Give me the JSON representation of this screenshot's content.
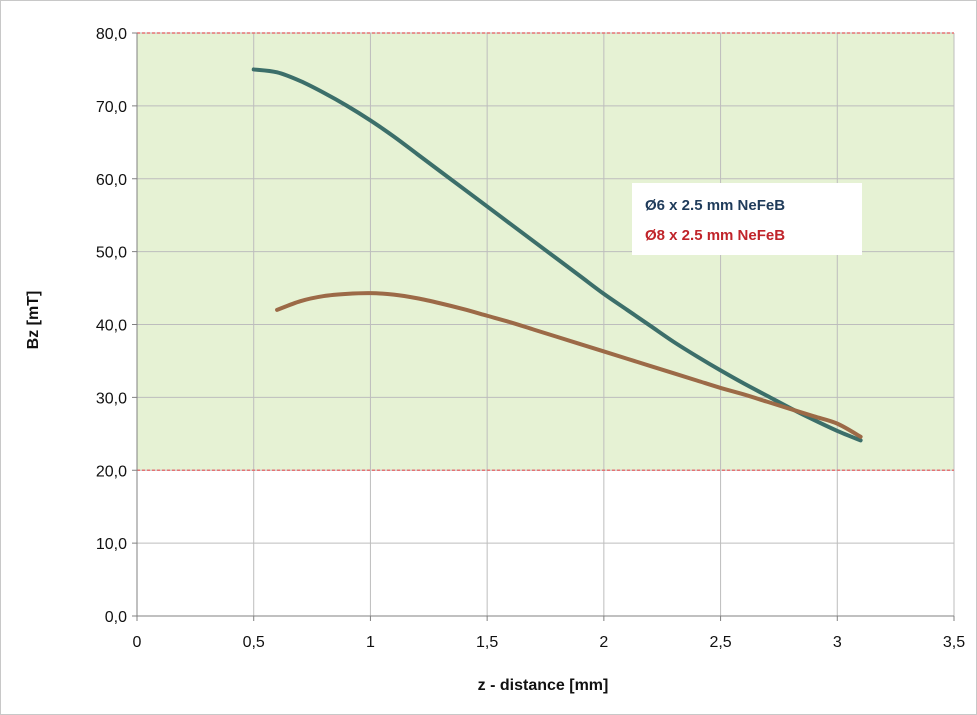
{
  "chart_data": {
    "type": "line",
    "title": "",
    "xlabel": "z - distance [mm]",
    "ylabel": "Bz [mT]",
    "xlim": [
      0,
      3.5
    ],
    "ylim": [
      0,
      80
    ],
    "x_ticks": [
      "0",
      "0,5",
      "1",
      "1,5",
      "2",
      "2,5",
      "3",
      "3,5"
    ],
    "x_tick_values": [
      0,
      0.5,
      1,
      1.5,
      2,
      2.5,
      3,
      3.5
    ],
    "y_ticks": [
      "0,0",
      "10,0",
      "20,0",
      "30,0",
      "40,0",
      "50,0",
      "60,0",
      "70,0",
      "80,0"
    ],
    "y_tick_values": [
      0,
      10,
      20,
      30,
      40,
      50,
      60,
      70,
      80
    ],
    "grid": true,
    "legend_position": "right",
    "shaded_band": {
      "y_from": 20,
      "y_to": 80,
      "fill": "#e6f2d4",
      "limit_line_color": "#e57373"
    },
    "series": [
      {
        "name": "Ø6 x 2.5 mm NeFeB",
        "color": "#3c6f6a",
        "legend_color": "#1f3b5a",
        "x": [
          0.5,
          0.6,
          0.7,
          0.8,
          0.9,
          1.0,
          1.1,
          1.2,
          1.3,
          1.4,
          1.5,
          1.6,
          1.7,
          1.8,
          1.9,
          2.0,
          2.1,
          2.2,
          2.3,
          2.4,
          2.5,
          2.6,
          2.7,
          2.8,
          2.9,
          3.0,
          3.1
        ],
        "y": [
          75.0,
          74.6,
          73.4,
          71.8,
          70.0,
          68.0,
          65.8,
          63.4,
          61.0,
          58.6,
          56.2,
          53.8,
          51.4,
          49.0,
          46.6,
          44.2,
          42.0,
          39.8,
          37.6,
          35.6,
          33.7,
          31.9,
          30.2,
          28.5,
          26.9,
          25.4,
          24.1
        ]
      },
      {
        "name": "Ø8 x 2.5 mm NeFeB",
        "color": "#9c6a47",
        "legend_color": "#c0242a",
        "x": [
          0.6,
          0.7,
          0.8,
          0.9,
          1.0,
          1.1,
          1.2,
          1.3,
          1.4,
          1.5,
          1.6,
          1.7,
          1.8,
          1.9,
          2.0,
          2.1,
          2.2,
          2.3,
          2.4,
          2.5,
          2.6,
          2.7,
          2.8,
          2.9,
          3.0,
          3.1
        ],
        "y": [
          42.0,
          43.2,
          43.9,
          44.2,
          44.3,
          44.1,
          43.6,
          42.9,
          42.1,
          41.2,
          40.3,
          39.3,
          38.3,
          37.3,
          36.3,
          35.3,
          34.3,
          33.3,
          32.3,
          31.3,
          30.4,
          29.4,
          28.4,
          27.4,
          26.4,
          24.6
        ]
      }
    ]
  }
}
